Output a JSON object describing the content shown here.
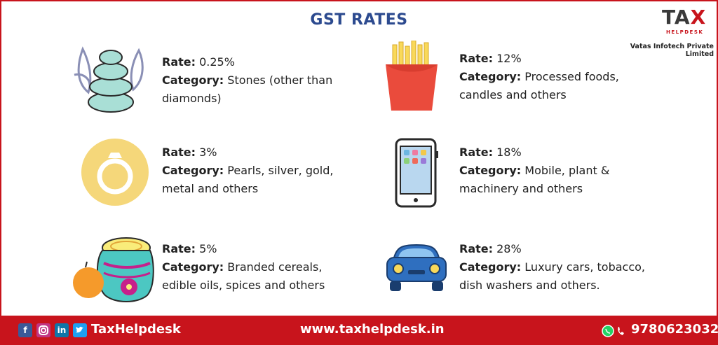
{
  "title": "GST RATES",
  "logo": {
    "brand_left": "TA",
    "brand_x": "X",
    "tagline": "HELPDESK",
    "company": "Vatas Infotech Private Limited"
  },
  "labels": {
    "rate": "Rate:",
    "category": "Category:"
  },
  "items": [
    {
      "rate": "0.25%",
      "category_l1": "Stones (other than",
      "category_l2": "diamonds)",
      "icon": "stones-icon"
    },
    {
      "rate": "12%",
      "category_l1": "Processed foods,",
      "category_l2": "candles and others",
      "icon": "fries-icon"
    },
    {
      "rate": "3%",
      "category_l1": "Pearls, silver, gold,",
      "category_l2": "metal and others",
      "icon": "ring-icon"
    },
    {
      "rate": "18%",
      "category_l1": "Mobile, plant &",
      "category_l2": "machinery and others",
      "icon": "mobile-icon"
    },
    {
      "rate": "5%",
      "category_l1": "Branded cereals,",
      "category_l2": "edible oils, spices and others",
      "icon": "pot-icon"
    },
    {
      "rate": "28%",
      "category_l1": "Luxury cars, tobacco,",
      "category_l2": "dish washers and others.",
      "icon": "car-icon"
    }
  ],
  "footer": {
    "brand": "TaxHelpdesk",
    "url": "www.taxhelpdesk.in",
    "phone": "9780623032",
    "social": [
      "f",
      "in"
    ]
  },
  "colors": {
    "accent": "#c8141c",
    "title": "#2c4a8f"
  }
}
